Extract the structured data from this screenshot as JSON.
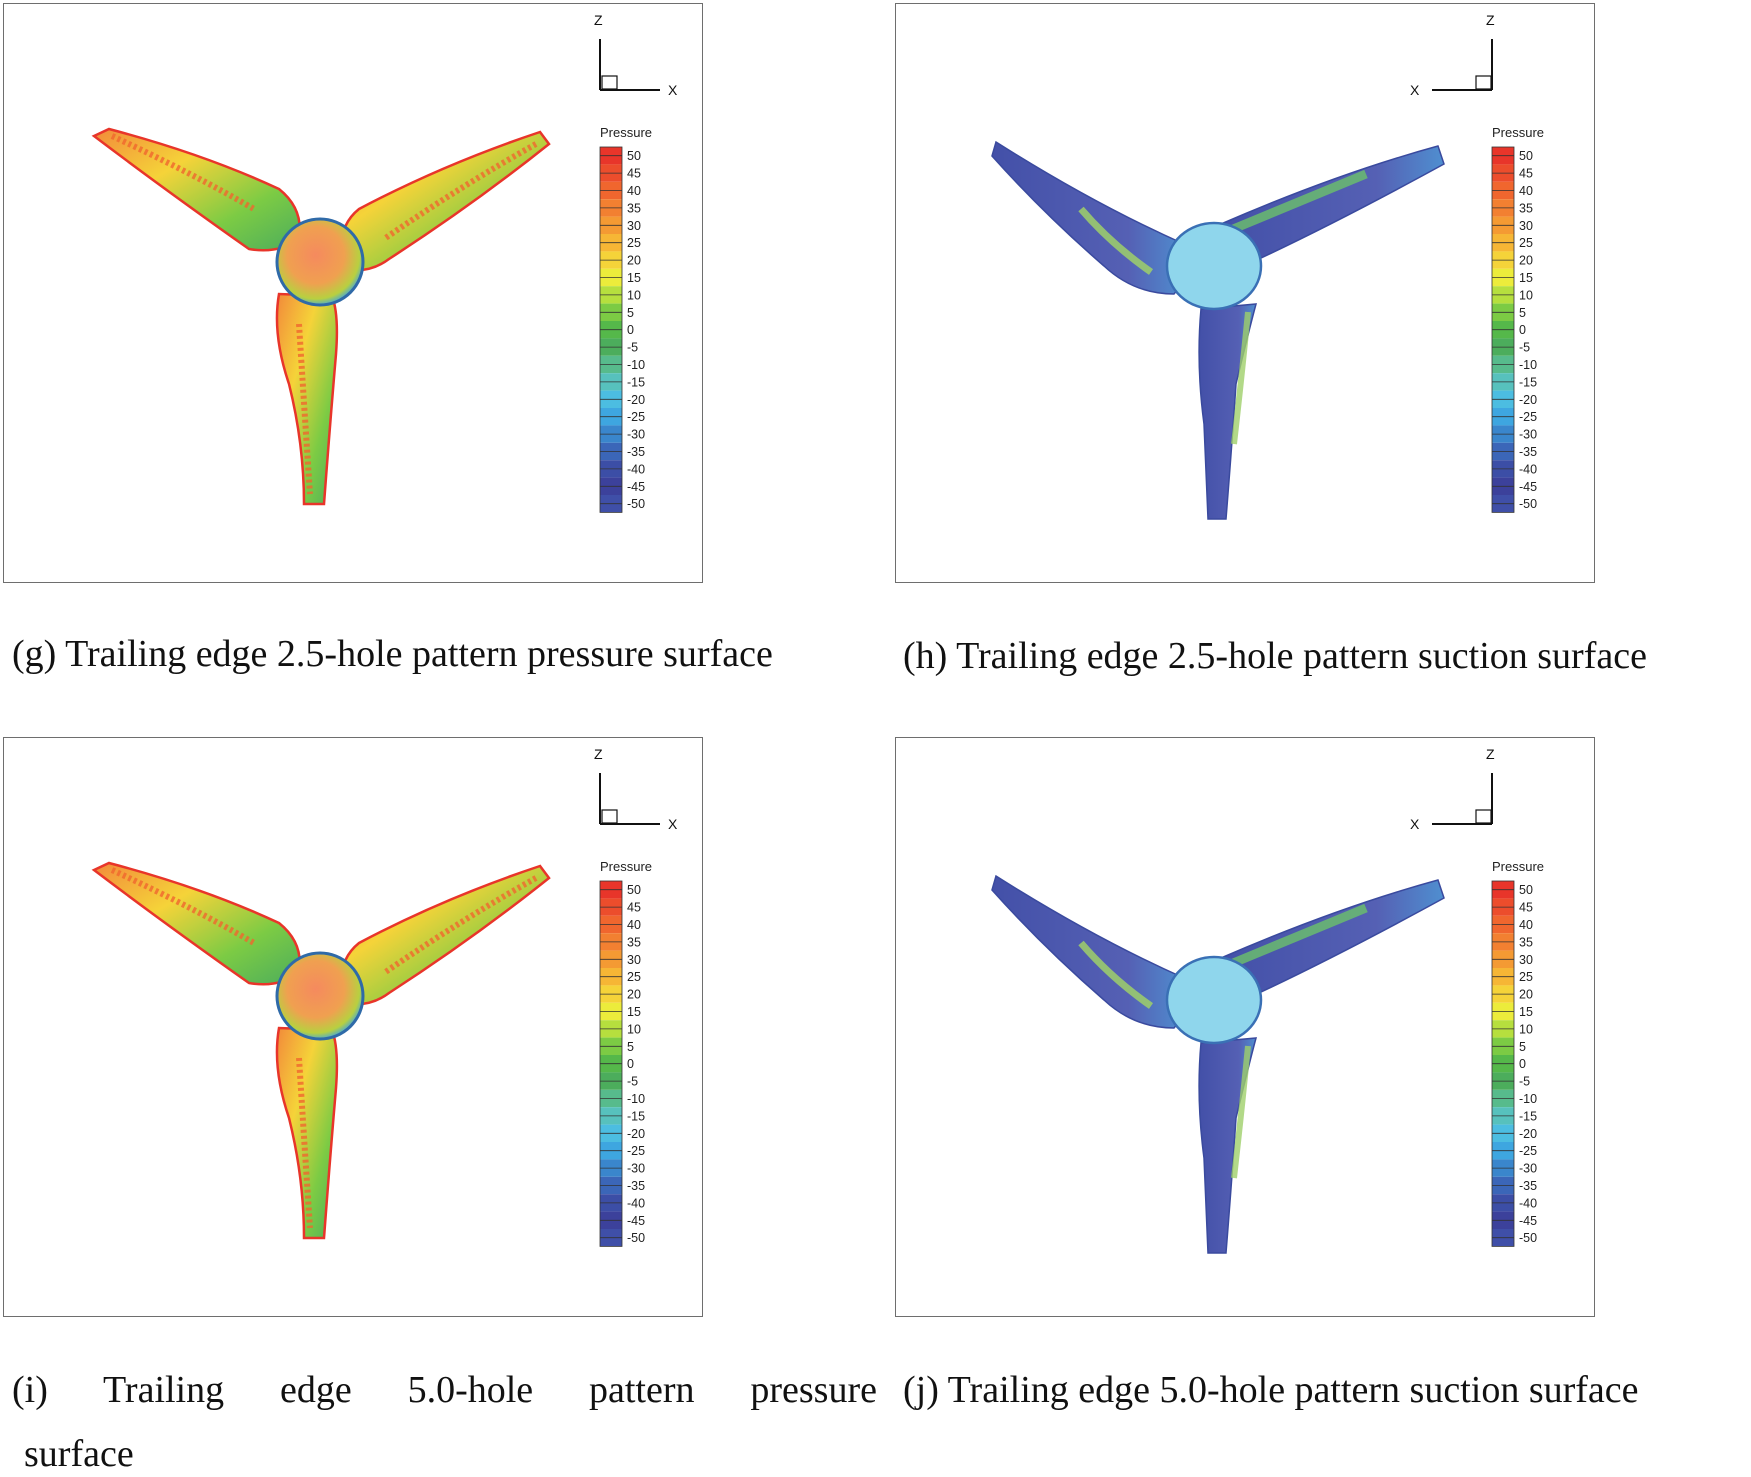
{
  "colorbar": {
    "title": "Pressure",
    "levels": [
      "50",
      "45",
      "40",
      "35",
      "30",
      "25",
      "20",
      "15",
      "10",
      "5",
      "0",
      "-5",
      "-10",
      "-15",
      "-20",
      "-25",
      "-30",
      "-35",
      "-40",
      "-45",
      "-50"
    ],
    "colors": [
      "#e8352a",
      "#ec4d2c",
      "#f0662e",
      "#f28031",
      "#f49a33",
      "#f6b635",
      "#f5d339",
      "#ecec3b",
      "#b6df3e",
      "#7ccb44",
      "#55b84a",
      "#4cad5c",
      "#57bb8c",
      "#57c1bd",
      "#4cbde1",
      "#3ea6e0",
      "#3a86cc",
      "#3b66b8",
      "#3c4ea6",
      "#3c419b",
      "#3f4fa8"
    ]
  },
  "axes": {
    "z": "Z",
    "x": "X"
  },
  "panels": [
    {
      "id": "g",
      "surface": "pressure",
      "orientation": "right",
      "hub": "#f08a55"
    },
    {
      "id": "h",
      "surface": "suction",
      "orientation": "left",
      "hub": "#8fd6ec"
    },
    {
      "id": "i",
      "surface": "pressure",
      "orientation": "right",
      "hub": "#f08a55"
    },
    {
      "id": "j",
      "surface": "suction",
      "orientation": "left",
      "hub": "#8fd6ec"
    }
  ],
  "captions": {
    "g": "(g) Trailing edge 2.5-hole pattern pressure surface",
    "h": "(h) Trailing edge 2.5-hole pattern suction surface",
    "i_line1": "(i)  Trailing  edge  5.0-hole  pattern  pressure",
    "i_line2": "surface",
    "j": "(j) Trailing edge 5.0-hole pattern suction surface"
  }
}
